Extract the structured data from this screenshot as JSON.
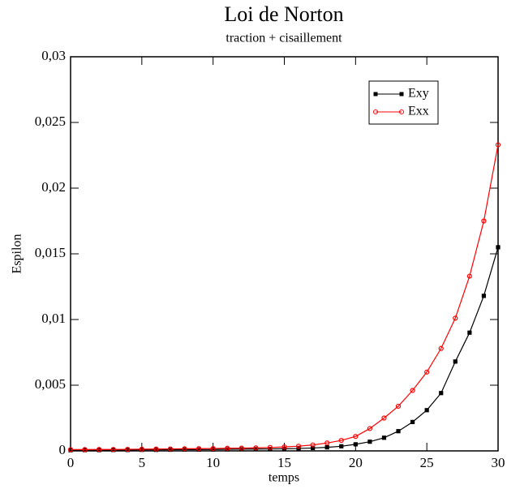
{
  "chart_data": {
    "type": "line",
    "title": "Loi de Norton",
    "subtitle": "traction + cisaillement",
    "x_label": "temps",
    "y_label": "Espilon",
    "x": [
      0,
      1,
      2,
      3,
      4,
      5,
      6,
      7,
      8,
      9,
      10,
      11,
      12,
      13,
      14,
      15,
      16,
      17,
      18,
      19,
      20,
      21,
      22,
      23,
      24,
      25,
      26,
      27,
      28,
      29,
      30
    ],
    "series": [
      {
        "name": "Exy",
        "color": "#000000",
        "marker": "square",
        "values": [
          5e-05,
          6e-05,
          6e-05,
          7e-05,
          7e-05,
          8e-05,
          8e-05,
          9e-05,
          0.0001,
          0.0001,
          0.00011,
          0.00012,
          0.00013,
          0.00014,
          0.00015,
          0.00016,
          0.00018,
          0.00022,
          0.00027,
          0.00035,
          0.0005,
          0.0007,
          0.001,
          0.0015,
          0.0022,
          0.0031,
          0.0044,
          0.0068,
          0.009,
          0.0118,
          0.0155
        ]
      },
      {
        "name": "Exx",
        "color": "#ff0000",
        "marker": "circle",
        "values": [
          0.0001,
          0.0001,
          0.00011,
          0.00011,
          0.00012,
          0.00013,
          0.00014,
          0.00015,
          0.00016,
          0.00017,
          0.00018,
          0.0002,
          0.00021,
          0.00023,
          0.00026,
          0.0003,
          0.00036,
          0.00045,
          0.0006,
          0.0008,
          0.0011,
          0.0017,
          0.0025,
          0.0034,
          0.0046,
          0.006,
          0.0078,
          0.0101,
          0.0133,
          0.0175,
          0.0233
        ]
      }
    ],
    "xlim": [
      0,
      30
    ],
    "ylim": [
      0,
      0.03
    ],
    "xticks": [
      0,
      5,
      10,
      15,
      20,
      25,
      30
    ],
    "yticks": [
      0,
      {
        "value": 0.005,
        "label": "0,005"
      },
      {
        "value": 0.01,
        "label": "0,01"
      },
      {
        "value": 0.015,
        "label": "0,015"
      },
      {
        "value": 0.02,
        "label": "0,02"
      },
      {
        "value": 0.025,
        "label": "0,025"
      },
      {
        "value": 0.03,
        "label": "0,03"
      }
    ],
    "legend": "upper right",
    "grid": false
  }
}
